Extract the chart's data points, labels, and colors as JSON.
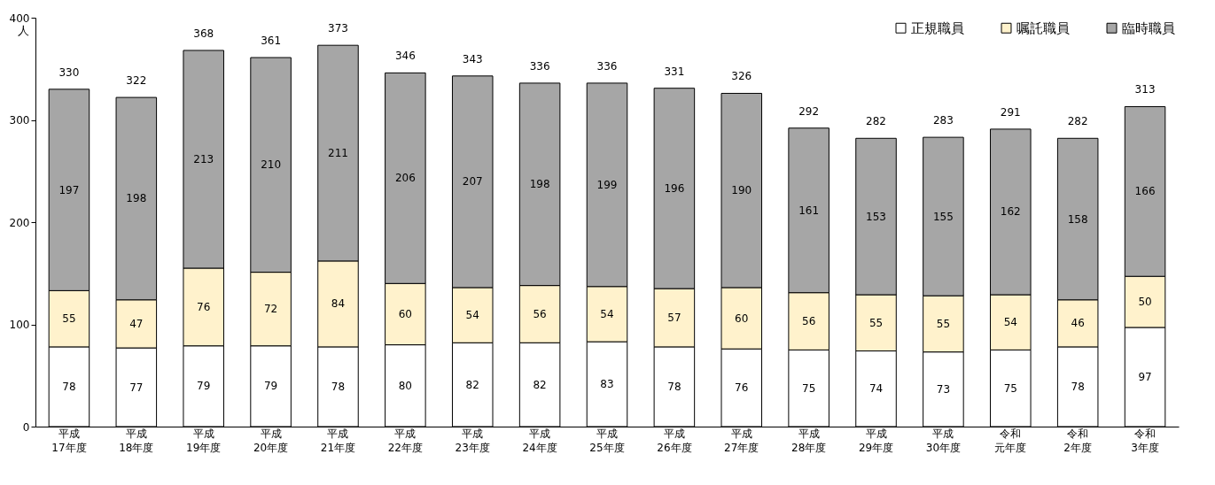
{
  "chart_data": {
    "type": "bar",
    "stacked": true,
    "ylabel": "人",
    "categories": [
      "平成17年度",
      "平成18年度",
      "平成19年度",
      "平成20年度",
      "平成21年度",
      "平成22年度",
      "平成23年度",
      "平成24年度",
      "平成25年度",
      "平成26年度",
      "平成27年度",
      "平成28年度",
      "平成29年度",
      "平成30年度",
      "令和元年度",
      "令和2年度",
      "令和3年度"
    ],
    "series": [
      {
        "name": "正規職員",
        "color": "#ffffff",
        "values": [
          78,
          77,
          79,
          79,
          78,
          80,
          82,
          82,
          83,
          78,
          76,
          75,
          74,
          73,
          75,
          78,
          97
        ]
      },
      {
        "name": "嘱託職員",
        "color": "#fff2cc",
        "values": [
          55,
          47,
          76,
          72,
          84,
          60,
          54,
          56,
          54,
          57,
          60,
          56,
          55,
          55,
          54,
          46,
          50
        ]
      },
      {
        "name": "臨時職員",
        "color": "#a6a6a6",
        "values": [
          197,
          198,
          213,
          210,
          211,
          206,
          207,
          198,
          199,
          196,
          190,
          161,
          153,
          155,
          162,
          158,
          166
        ]
      }
    ],
    "totals": [
      "330",
      "322",
      "368",
      "361",
      "373",
      "346",
      "343",
      "336",
      "336",
      "331",
      "326",
      "292",
      "282",
      "283",
      "291",
      "282",
      "313"
    ],
    "data_labels": true,
    "ylim": [
      0,
      400
    ],
    "yticks": [
      0,
      100,
      200,
      300,
      400
    ],
    "grid": false,
    "legend": "top right"
  }
}
